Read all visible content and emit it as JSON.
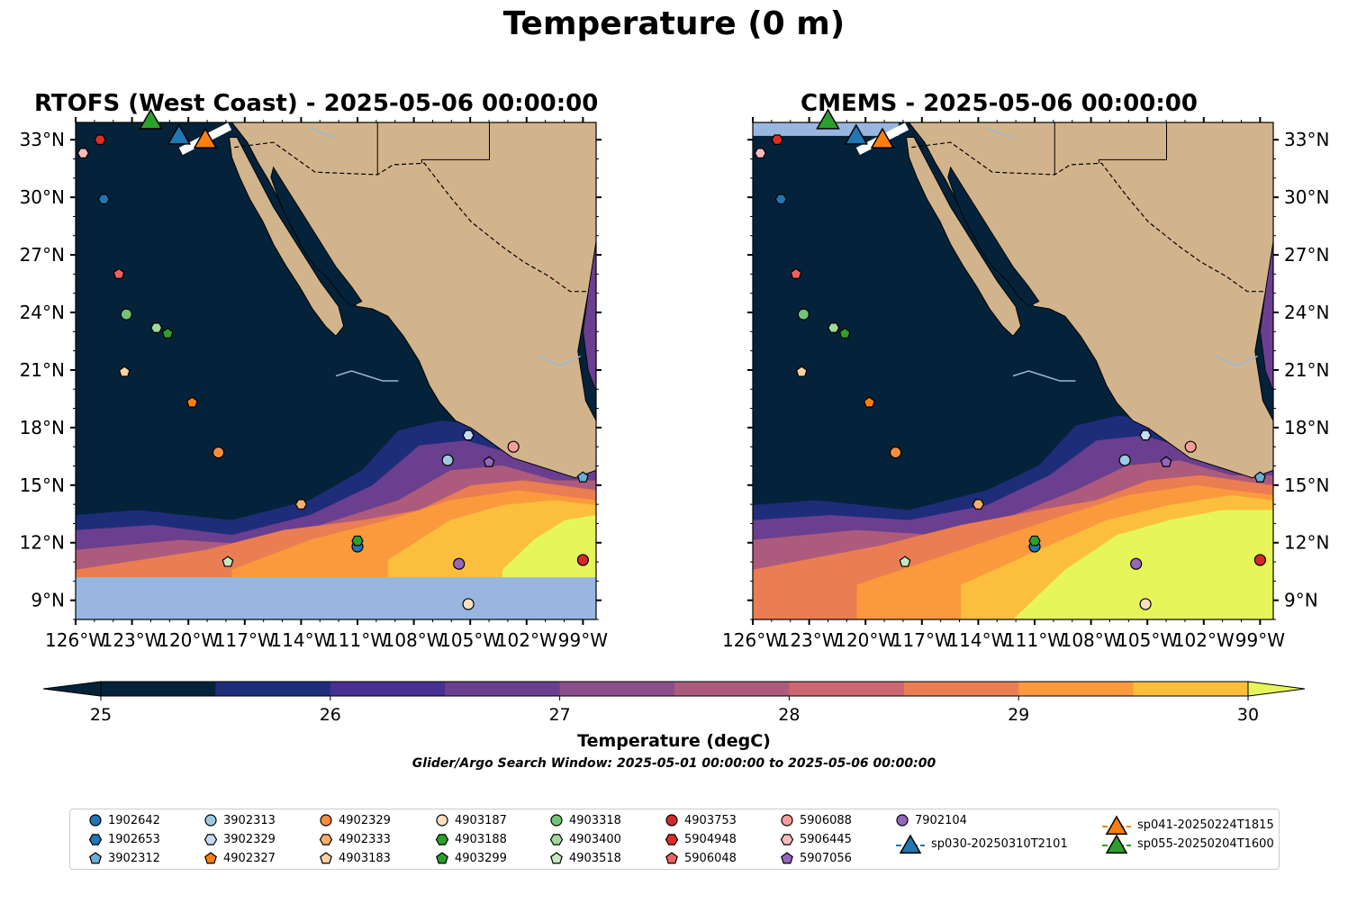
{
  "title": "Temperature (0 m)",
  "panels": [
    {
      "id": "rtofs",
      "title": "RTOFS (West Coast) - 2025-05-06 00:00:00"
    },
    {
      "id": "cmems",
      "title": "CMEMS - 2025-05-06 00:00:00"
    }
  ],
  "map": {
    "lon_range": [
      -126,
      -98.3
    ],
    "lat_range": [
      8.0,
      33.9
    ],
    "lon_ticks": [
      "126°W",
      "123°W",
      "120°W",
      "117°W",
      "114°W",
      "111°W",
      "108°W",
      "105°W",
      "102°W",
      "99°W"
    ],
    "lat_ticks": [
      "9°N",
      "12°N",
      "15°N",
      "18°N",
      "21°N",
      "24°N",
      "27°N",
      "30°N",
      "33°N"
    ],
    "colors": {
      "land": "#d2b48c",
      "ocean_cold": "#04233a",
      "nodata": "#98b6e0",
      "river": "#9cb6d6"
    }
  },
  "colorbar": {
    "label": "Temperature (degC)",
    "ticks": [
      "25",
      "26",
      "27",
      "28",
      "29",
      "30"
    ],
    "colors": [
      "#04233a",
      "#1e2d7a",
      "#47308f",
      "#6b3f8f",
      "#8c4e8a",
      "#ad5b7d",
      "#cc6670",
      "#ea7e52",
      "#fb9a3d",
      "#fbbf3d"
    ],
    "under_color": "#04233a",
    "over_color": "#e6f65a"
  },
  "search_window": "Glider/Argo Search Window: 2025-05-01 00:00:00 to 2025-05-06 00:00:00",
  "floats": [
    {
      "id": "1902642",
      "lon": -111.0,
      "lat": 11.8,
      "marker": "circle",
      "color": "#1f77b4"
    },
    {
      "id": "1902653",
      "lon": -124.5,
      "lat": 29.9,
      "marker": "hexagon",
      "color": "#1f77b4"
    },
    {
      "id": "3902312",
      "lon": -99.0,
      "lat": 15.4,
      "marker": "pentagon",
      "color": "#6baed6"
    },
    {
      "id": "3902313",
      "lon": -106.2,
      "lat": 16.3,
      "marker": "circle",
      "color": "#9ecae1"
    },
    {
      "id": "3902329",
      "lon": -105.1,
      "lat": 17.6,
      "marker": "hexagon",
      "color": "#c6dbef"
    },
    {
      "id": "4902327",
      "lon": -119.8,
      "lat": 19.3,
      "marker": "pentagon",
      "color": "#ff7f0e"
    },
    {
      "id": "4902329",
      "lon": -118.4,
      "lat": 16.7,
      "marker": "circle",
      "color": "#fd8d3c"
    },
    {
      "id": "4902333",
      "lon": -114.0,
      "lat": 14.0,
      "marker": "hexagon",
      "color": "#fdae6b"
    },
    {
      "id": "4903183",
      "lon": -123.4,
      "lat": 20.9,
      "marker": "pentagon",
      "color": "#fdd0a2"
    },
    {
      "id": "4903187",
      "lon": -105.1,
      "lat": 8.8,
      "marker": "circle",
      "color": "#fee0c0"
    },
    {
      "id": "4903188",
      "lon": -111.0,
      "lat": 12.1,
      "marker": "hexagon",
      "color": "#2ca02c"
    },
    {
      "id": "4903299",
      "lon": -121.1,
      "lat": 22.9,
      "marker": "pentagon",
      "color": "#2ca02c"
    },
    {
      "id": "4903318",
      "lon": -123.3,
      "lat": 23.9,
      "marker": "circle",
      "color": "#74c476"
    },
    {
      "id": "4903400",
      "lon": -121.7,
      "lat": 23.2,
      "marker": "hexagon",
      "color": "#a1d99b"
    },
    {
      "id": "4903518",
      "lon": -117.9,
      "lat": 11.0,
      "marker": "pentagon",
      "color": "#c7e9c0"
    },
    {
      "id": "4903753",
      "lon": -99.0,
      "lat": 11.1,
      "marker": "circle",
      "color": "#d62728"
    },
    {
      "id": "5904948",
      "lon": -124.7,
      "lat": 33.0,
      "marker": "hexagon",
      "color": "#de2d26"
    },
    {
      "id": "5906048",
      "lon": -123.7,
      "lat": 26.0,
      "marker": "pentagon",
      "color": "#ef6060"
    },
    {
      "id": "5906088",
      "lon": -102.7,
      "lat": 17.0,
      "marker": "circle",
      "color": "#fc9d9a"
    },
    {
      "id": "5906445",
      "lon": -125.6,
      "lat": 32.3,
      "marker": "hexagon",
      "color": "#fcbcbc"
    },
    {
      "id": "5907056",
      "lon": -104.0,
      "lat": 16.2,
      "marker": "pentagon",
      "color": "#9467bd"
    },
    {
      "id": "7902104",
      "lon": -105.6,
      "lat": 10.9,
      "marker": "circle",
      "color": "#9467bd"
    }
  ],
  "gliders": [
    {
      "id": "sp030-20250310T2101",
      "lon": -120.5,
      "lat": 33.2,
      "color": "#1f77b4"
    },
    {
      "id": "sp041-20250224T1815",
      "lon": -119.1,
      "lat": 33.0,
      "color": "#ff7f0e"
    },
    {
      "id": "sp055-20250204T1600",
      "lon": -122.0,
      "lat": 34.0,
      "color": "#2ca02c"
    }
  ]
}
